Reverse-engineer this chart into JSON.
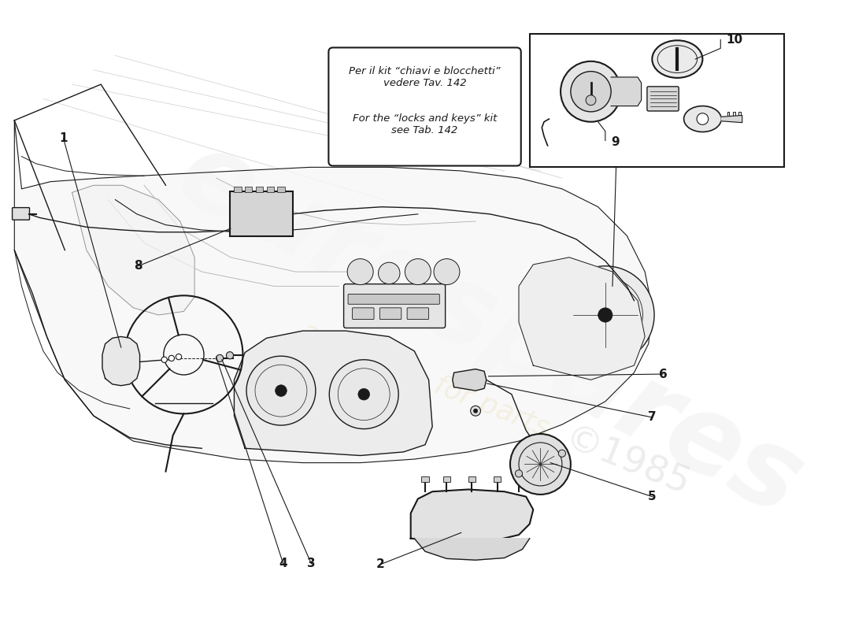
{
  "bg_color": "#ffffff",
  "line_color": "#1a1a1a",
  "light_line": "#555555",
  "fill_light": "#f0f0f0",
  "fill_medium": "#e0e0e0",
  "fill_dark": "#c8c8c8",
  "watermark_orange": "#d4a832",
  "watermark_gray": "#cccccc",
  "note_italian": "Per il kit “chiavi e blocchetti”\nvedere Tav. 142",
  "note_english": "For the “locks and keys” kit\nsee Tab. 142",
  "fig_width": 11.0,
  "fig_height": 8.0,
  "dpi": 100
}
